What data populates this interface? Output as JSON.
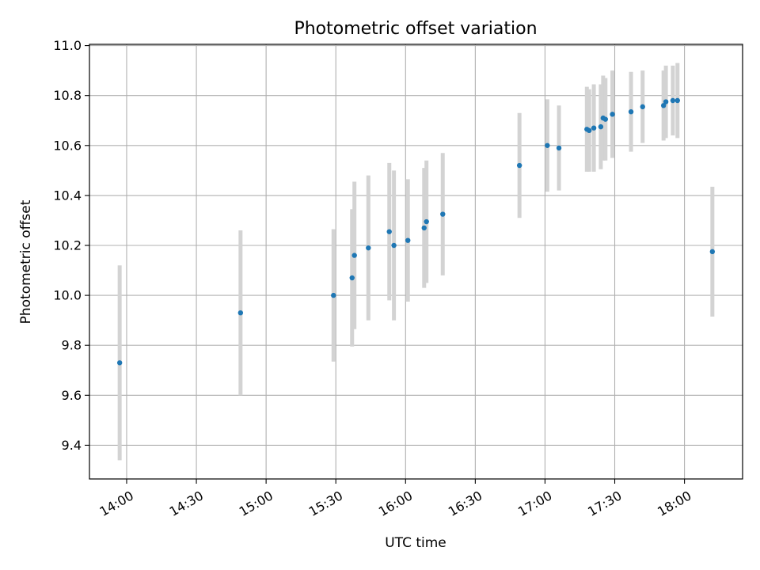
{
  "chart_data": {
    "type": "scatter",
    "title": "Photometric offset variation",
    "xlabel": "UTC time",
    "ylabel": "Photometric offset",
    "grid": true,
    "xlim": [
      "13:44",
      "18:25"
    ],
    "ylim": [
      9.265,
      11.005
    ],
    "x_ticks": [
      "14:00",
      "14:30",
      "15:00",
      "15:30",
      "16:00",
      "16:30",
      "17:00",
      "17:30",
      "18:00"
    ],
    "y_ticks": [
      9.4,
      9.6,
      9.8,
      10.0,
      10.2,
      10.4,
      10.6,
      10.8,
      11.0
    ],
    "y_tick_labels": [
      "9.4",
      "9.6",
      "9.8",
      "10.0",
      "10.2",
      "10.4",
      "10.6",
      "10.8",
      "11.0"
    ],
    "point_color": "#1f77b4",
    "errorbar_color": "#d3d3d3",
    "points": [
      {
        "time": "13:57",
        "y": 9.73,
        "err": 0.39
      },
      {
        "time": "14:49",
        "y": 9.93,
        "err": 0.33
      },
      {
        "time": "15:29",
        "y": 10.0,
        "err": 0.265
      },
      {
        "time": "15:37",
        "y": 10.07,
        "err": 0.275
      },
      {
        "time": "15:38",
        "y": 10.16,
        "err": 0.295
      },
      {
        "time": "15:44",
        "y": 10.19,
        "err": 0.29
      },
      {
        "time": "15:53",
        "y": 10.255,
        "err": 0.275
      },
      {
        "time": "15:55",
        "y": 10.2,
        "err": 0.3
      },
      {
        "time": "16:01",
        "y": 10.22,
        "err": 0.245
      },
      {
        "time": "16:08",
        "y": 10.27,
        "err": 0.24
      },
      {
        "time": "16:09",
        "y": 10.295,
        "err": 0.245
      },
      {
        "time": "16:16",
        "y": 10.325,
        "err": 0.245
      },
      {
        "time": "16:49",
        "y": 10.52,
        "err": 0.21
      },
      {
        "time": "17:01",
        "y": 10.6,
        "err": 0.185
      },
      {
        "time": "17:06",
        "y": 10.59,
        "err": 0.17
      },
      {
        "time": "17:18",
        "y": 10.665,
        "err": 0.17
      },
      {
        "time": "17:19",
        "y": 10.66,
        "err": 0.165
      },
      {
        "time": "17:21",
        "y": 10.67,
        "err": 0.175
      },
      {
        "time": "17:24",
        "y": 10.675,
        "err": 0.17
      },
      {
        "time": "17:25",
        "y": 10.71,
        "err": 0.17
      },
      {
        "time": "17:26",
        "y": 10.705,
        "err": 0.165
      },
      {
        "time": "17:29",
        "y": 10.725,
        "err": 0.175
      },
      {
        "time": "17:37",
        "y": 10.735,
        "err": 0.16
      },
      {
        "time": "17:42",
        "y": 10.755,
        "err": 0.145
      },
      {
        "time": "17:51",
        "y": 10.76,
        "err": 0.14
      },
      {
        "time": "17:52",
        "y": 10.775,
        "err": 0.145
      },
      {
        "time": "17:55",
        "y": 10.78,
        "err": 0.14
      },
      {
        "time": "17:57",
        "y": 10.78,
        "err": 0.15
      },
      {
        "time": "18:12",
        "y": 10.175,
        "err": 0.26
      }
    ]
  }
}
